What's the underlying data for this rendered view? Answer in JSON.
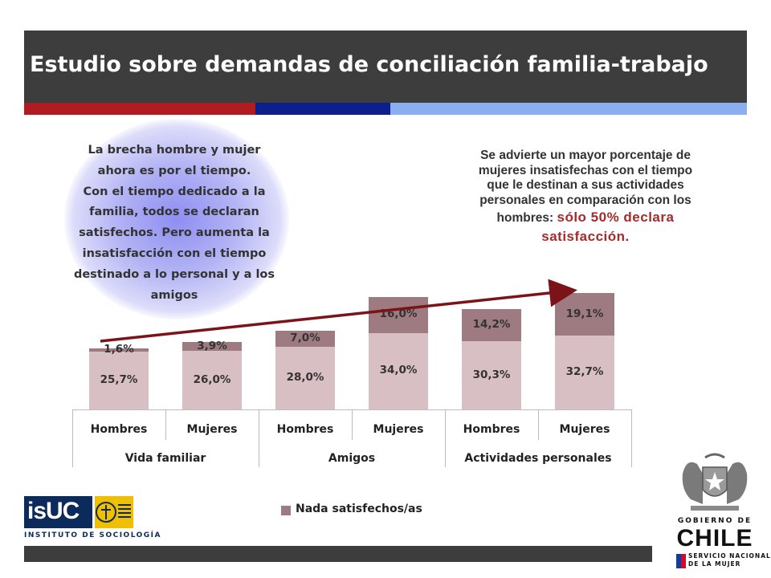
{
  "header": {
    "title": "Estudio sobre demandas de conciliación familia-trabajo"
  },
  "colors": {
    "header_bg": "#3d3d3d",
    "stripe_red": "#b01c22",
    "stripe_blue": "#0c1f8c",
    "stripe_lightblue": "#8aaef0",
    "satisfied": "#d8bfc3",
    "dissatisfied": "#9e7b80",
    "arrow": "#7a1418"
  },
  "bubble": {
    "lines": [
      "La brecha hombre y mujer",
      "ahora es por el tiempo.",
      "Con el tiempo dedicado a la",
      "familia, todos se declaran",
      "satisfechos.  Pero aumenta la",
      "insatisfacción  con  el tiempo",
      "destinado  a lo personal y a los",
      "amigos"
    ]
  },
  "note": {
    "lines": [
      "Se advierte un mayor porcentaje de",
      "mujeres  insatisfechas con el tiempo",
      "que le destinan a sus actividades",
      "personales en comparación con los"
    ],
    "last_prefix": "hombres: ",
    "highlight_1": "sólo 50% declara",
    "highlight_2": "satisfacción."
  },
  "chart_data": {
    "type": "bar",
    "stacked": true,
    "categories": [
      "Hombres",
      "Mujeres",
      "Hombres",
      "Mujeres",
      "Hombres",
      "Mujeres"
    ],
    "groups": [
      {
        "label": "Vida familiar",
        "span": 2
      },
      {
        "label": "Amigos",
        "span": 2
      },
      {
        "label": "Actividades personales",
        "span": 2
      }
    ],
    "series": [
      {
        "values": [
          25.7,
          26.0,
          28.0,
          34.0,
          30.3,
          32.7
        ],
        "labels": [
          "25,7%",
          "26,0%",
          "28,0%",
          "34,0%",
          "30,3%",
          "32,7%"
        ]
      },
      {
        "name": "Nada satisfechos/as",
        "values": [
          1.6,
          3.9,
          7.0,
          16.0,
          14.2,
          19.1
        ],
        "labels": [
          "1,6%",
          "3,9%",
          "7,0%",
          "16,0%",
          "14,2%",
          "19,1%"
        ]
      }
    ],
    "legend": {
      "position": "bottom",
      "entries": [
        "Nada satisfechos/as"
      ]
    }
  },
  "logos": {
    "isuc": {
      "main": "isUC",
      "sub": "INSTITUTO DE SOCIOLOGÍA",
      "seal": "PONTIFICIA UNIVERSIDAD CATÓLICA DE CHILE"
    },
    "gobierno": {
      "line1": "GOBIERNO DE",
      "line2": "CHILE",
      "line3": "SERVICIO NACIONAL",
      "line4": "DE LA MUJER"
    }
  }
}
